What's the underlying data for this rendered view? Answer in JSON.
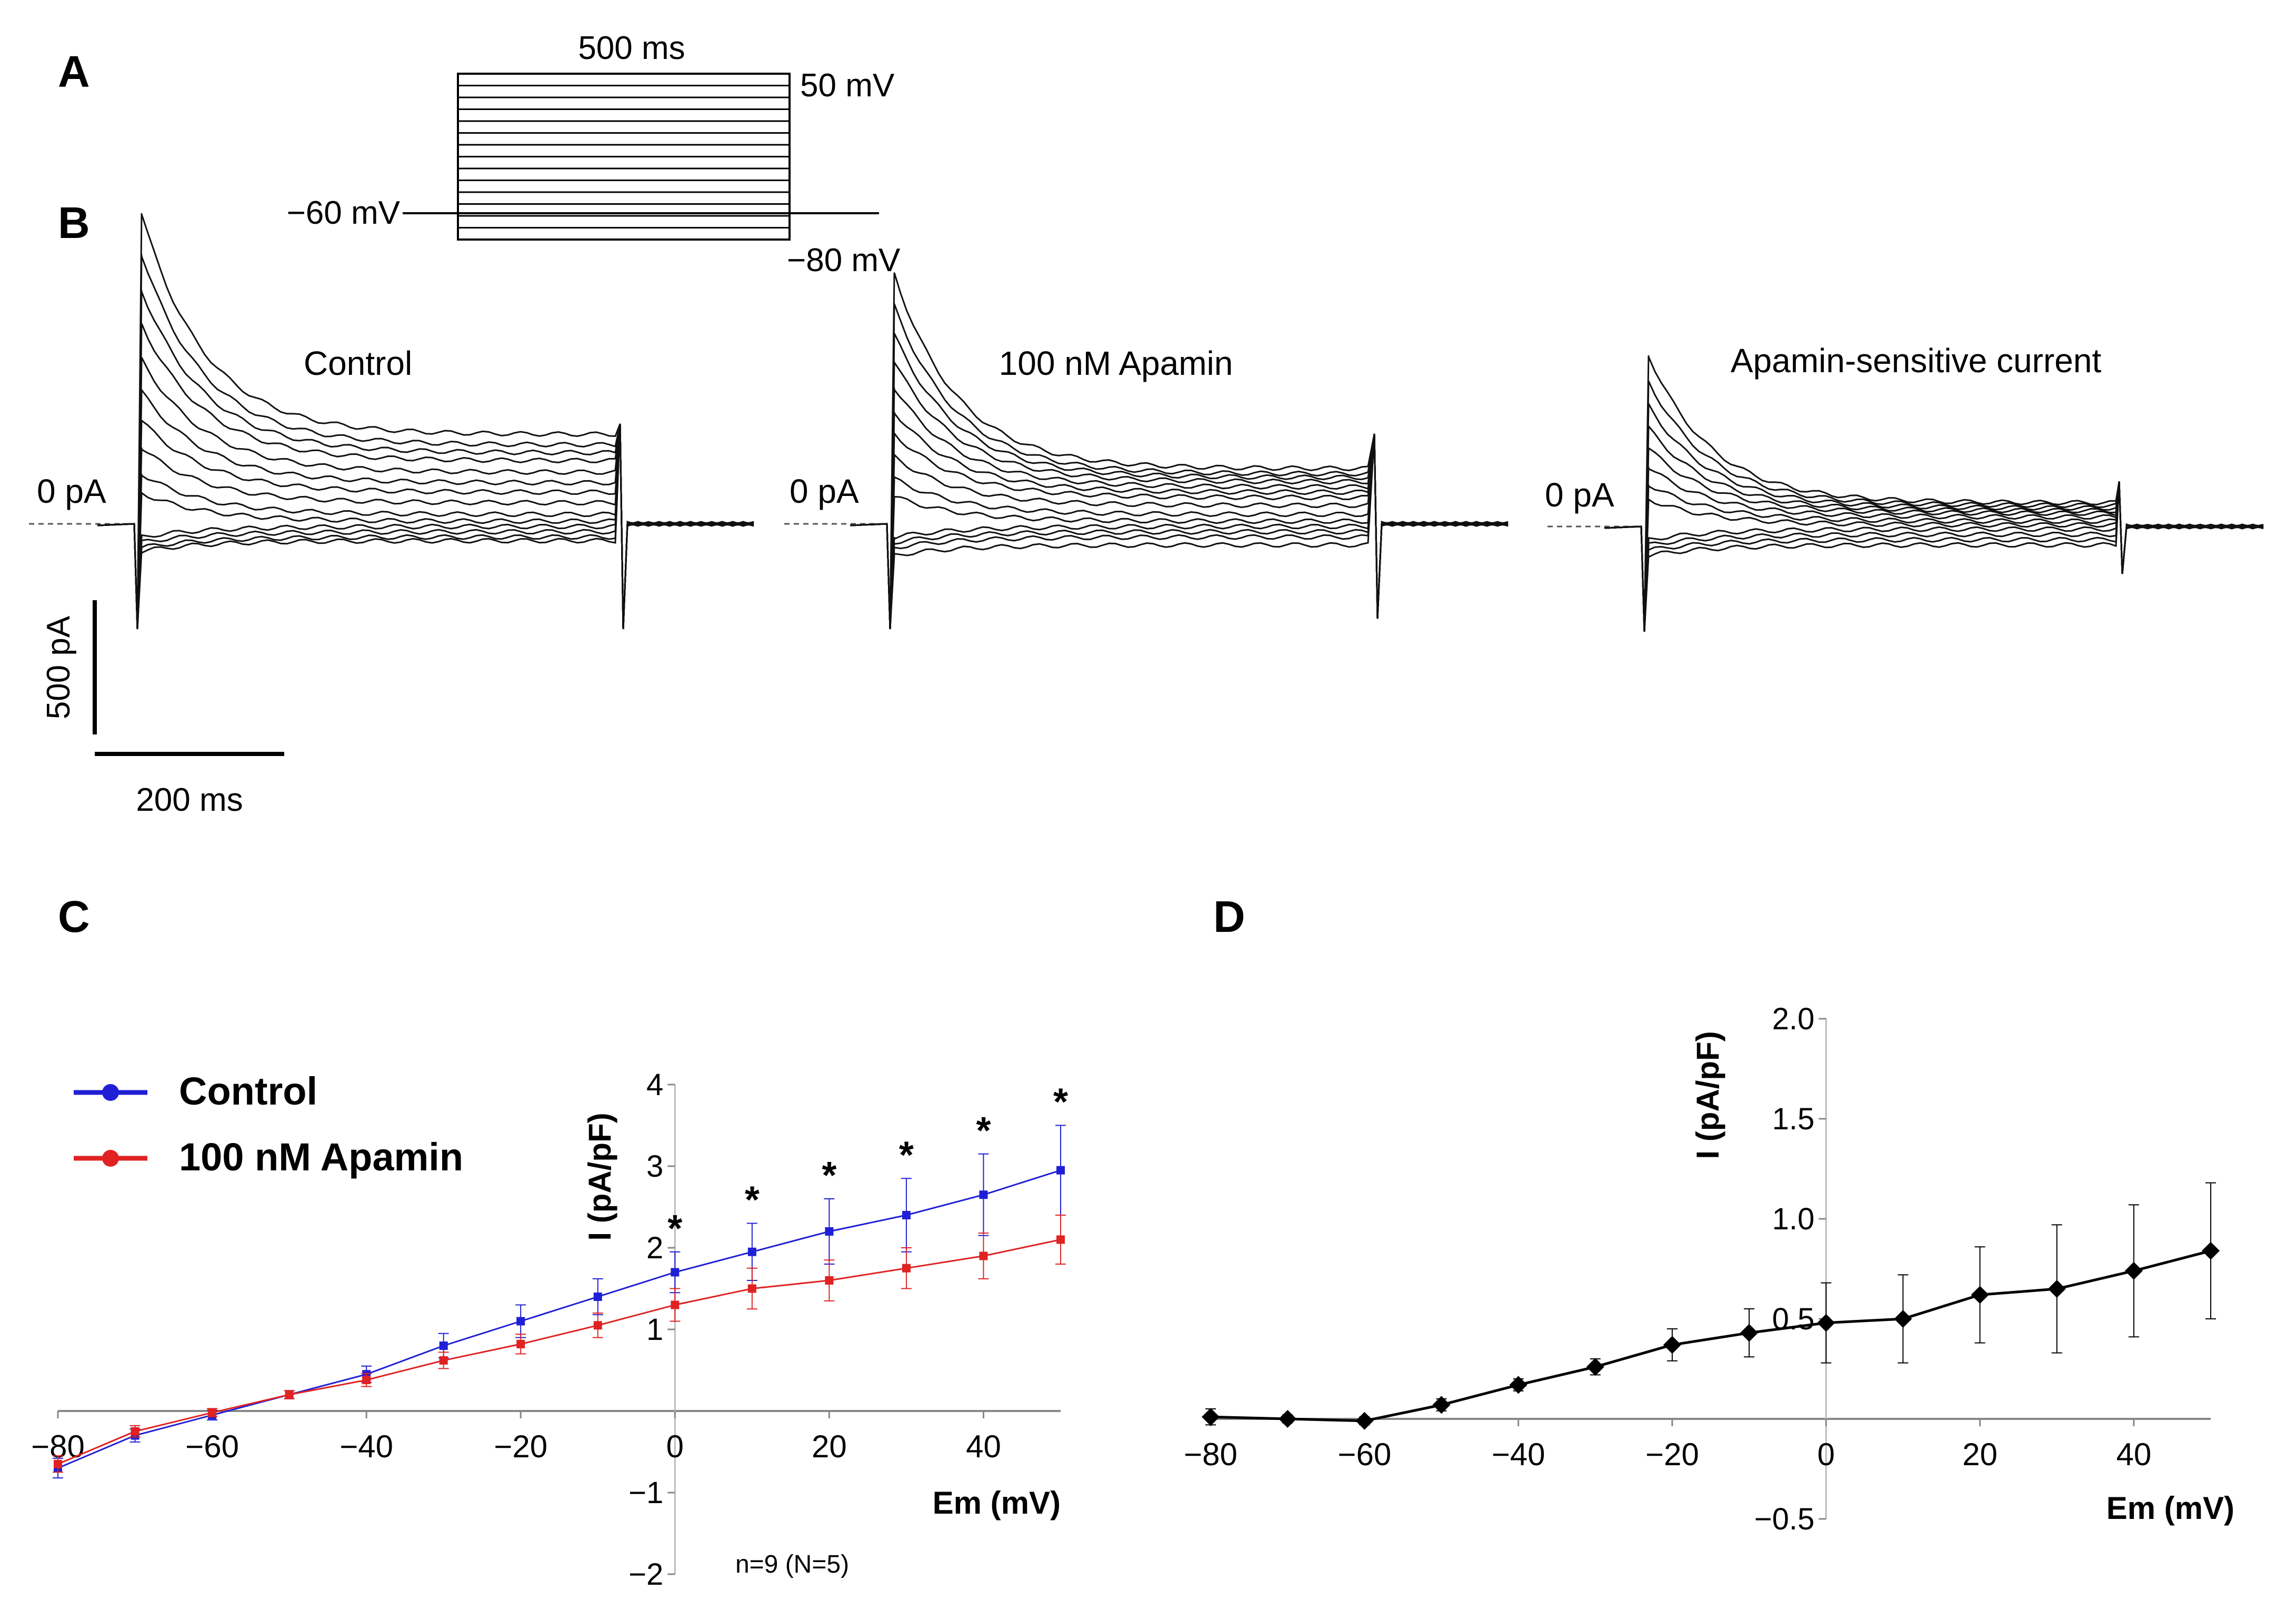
{
  "panels": {
    "A": {
      "letter": "A",
      "duration_label": "500 ms",
      "top_label": "50 mV",
      "holding_label": "−60 mV",
      "bottom_label": "−80 mV"
    },
    "B": {
      "letter": "B",
      "zero_label": "0 pA",
      "trace_titles": [
        "Control",
        "100 nM Apamin",
        "Apamin-sensitive current"
      ],
      "scalebar_y_label": "500 pA",
      "scalebar_x_label": "200 ms"
    },
    "C": {
      "letter": "C",
      "note": "n=9 (N=5)"
    },
    "D": {
      "letter": "D"
    }
  },
  "colors": {
    "control": "#1f1fd6",
    "apamin": "#e02222",
    "black": "#000000",
    "axis_gray": "#888888"
  },
  "chart_data": [
    {
      "panel": "C",
      "type": "line",
      "xlabel": "Em (mV)",
      "ylabel": "I (pA/pF)",
      "x": [
        -80,
        -70,
        -60,
        -50,
        -40,
        -30,
        -20,
        -10,
        0,
        10,
        20,
        30,
        40,
        50
      ],
      "xticks": [
        -80,
        -60,
        -40,
        -20,
        0,
        20,
        40
      ],
      "xtick_labels": [
        "−80",
        "−60",
        "−40",
        "−20",
        "0",
        "20",
        "40"
      ],
      "yticks": [
        -2,
        -1,
        1,
        2,
        3,
        4
      ],
      "ytick_labels": [
        "−2",
        "−1",
        "1",
        "2",
        "3",
        "4"
      ],
      "xlim": [
        -80,
        50
      ],
      "ylim": [
        -2,
        4
      ],
      "series": [
        {
          "name": "Control",
          "color": "#1f1fd6",
          "values": [
            -0.7,
            -0.3,
            -0.05,
            0.2,
            0.45,
            0.8,
            1.1,
            1.4,
            1.7,
            1.95,
            2.2,
            2.4,
            2.65,
            2.95
          ],
          "errors": [
            0.12,
            0.08,
            0.06,
            0.05,
            0.1,
            0.15,
            0.2,
            0.22,
            0.25,
            0.35,
            0.4,
            0.45,
            0.5,
            0.55
          ]
        },
        {
          "name": "100 nM Apamin",
          "color": "#e02222",
          "values": [
            -0.65,
            -0.25,
            -0.02,
            0.2,
            0.38,
            0.62,
            0.82,
            1.05,
            1.3,
            1.5,
            1.6,
            1.75,
            1.9,
            2.1
          ],
          "errors": [
            0.1,
            0.07,
            0.05,
            0.05,
            0.08,
            0.1,
            0.12,
            0.15,
            0.2,
            0.25,
            0.25,
            0.25,
            0.28,
            0.3
          ]
        }
      ],
      "significance": {
        "x": [
          0,
          10,
          20,
          30,
          40,
          50
        ],
        "marker": "*"
      }
    },
    {
      "panel": "D",
      "type": "line",
      "xlabel": "Em (mV)",
      "ylabel": "I (pA/pF)",
      "x": [
        -80,
        -70,
        -60,
        -50,
        -40,
        -30,
        -20,
        -10,
        0,
        10,
        20,
        30,
        40,
        50
      ],
      "xticks": [
        -80,
        -60,
        -40,
        -20,
        0,
        20,
        40
      ],
      "xtick_labels": [
        "−80",
        "−60",
        "−40",
        "−20",
        "0",
        "20",
        "40"
      ],
      "yticks": [
        -0.5,
        0.5,
        1.0,
        1.5,
        2.0
      ],
      "ytick_labels": [
        "−0.5",
        "0.5",
        "1.0",
        "1.5",
        "2.0"
      ],
      "xlim": [
        -80,
        50
      ],
      "ylim": [
        -0.5,
        2.0
      ],
      "series": [
        {
          "name": "Apamin-sensitive",
          "color": "#000000",
          "values": [
            0.01,
            0.0,
            -0.01,
            0.07,
            0.17,
            0.26,
            0.37,
            0.43,
            0.48,
            0.5,
            0.62,
            0.65,
            0.74,
            0.84
          ],
          "errors": [
            0.04,
            0.02,
            0.02,
            0.03,
            0.03,
            0.04,
            0.08,
            0.12,
            0.2,
            0.22,
            0.24,
            0.32,
            0.33,
            0.34
          ]
        }
      ]
    }
  ]
}
